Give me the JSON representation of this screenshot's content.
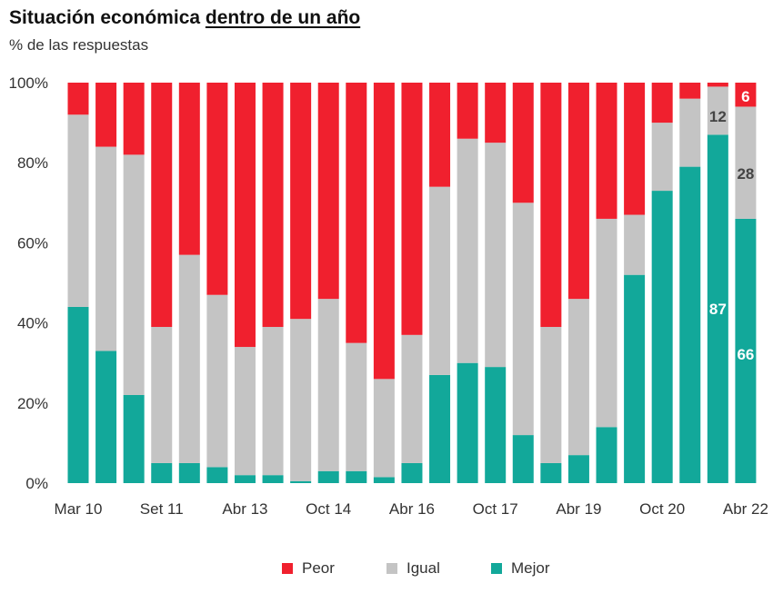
{
  "title_part1": "Situación económica ",
  "title_part2": "dentro de un año",
  "subtitle": "% de las respuestas",
  "colors": {
    "peor": "#f0202e",
    "igual": "#c4c4c4",
    "mejor": "#12a89a"
  },
  "chart_data": {
    "type": "bar",
    "stacked": true,
    "ylim": [
      0,
      100
    ],
    "yticks": [
      "0%",
      "20%",
      "40%",
      "60%",
      "80%",
      "100%"
    ],
    "xtick_labels": [
      "Mar 10",
      "Set 11",
      "Abr 13",
      "Oct 14",
      "Abr 16",
      "Oct 17",
      "Abr 19",
      "Oct 20",
      "Abr 22"
    ],
    "legend": [
      "Peor",
      "Igual",
      "Mejor"
    ],
    "legend_position": "bottom",
    "series": [
      {
        "name": "Mejor",
        "values": [
          44,
          33,
          22,
          5,
          5,
          4,
          2,
          2,
          0.5,
          3,
          3,
          1.5,
          5,
          27,
          30,
          29,
          12,
          5,
          7,
          14,
          52,
          73,
          79,
          87,
          66
        ]
      },
      {
        "name": "Igual",
        "values": [
          48,
          51,
          60,
          34,
          52,
          43,
          32,
          37,
          40.5,
          43,
          32,
          24.5,
          32,
          47,
          56,
          56,
          58,
          34,
          39,
          52,
          15,
          17,
          17,
          12,
          28
        ]
      },
      {
        "name": "Peor",
        "values": [
          8,
          16,
          18,
          61,
          43,
          53,
          66,
          61,
          59,
          54,
          65,
          74,
          63,
          26,
          14,
          15,
          30,
          61,
          54,
          34,
          33,
          10,
          4,
          1,
          6
        ]
      }
    ],
    "data_labels": [
      {
        "bar": 23,
        "series": "Mejor",
        "text": "87"
      },
      {
        "bar": 23,
        "series": "Igual",
        "text": "12"
      },
      {
        "bar": 24,
        "series": "Mejor",
        "text": "66"
      },
      {
        "bar": 24,
        "series": "Igual",
        "text": "28"
      },
      {
        "bar": 24,
        "series": "Peor",
        "text": "6"
      }
    ]
  },
  "legend_labels": {
    "peor": "Peor",
    "igual": "Igual",
    "mejor": "Mejor"
  }
}
